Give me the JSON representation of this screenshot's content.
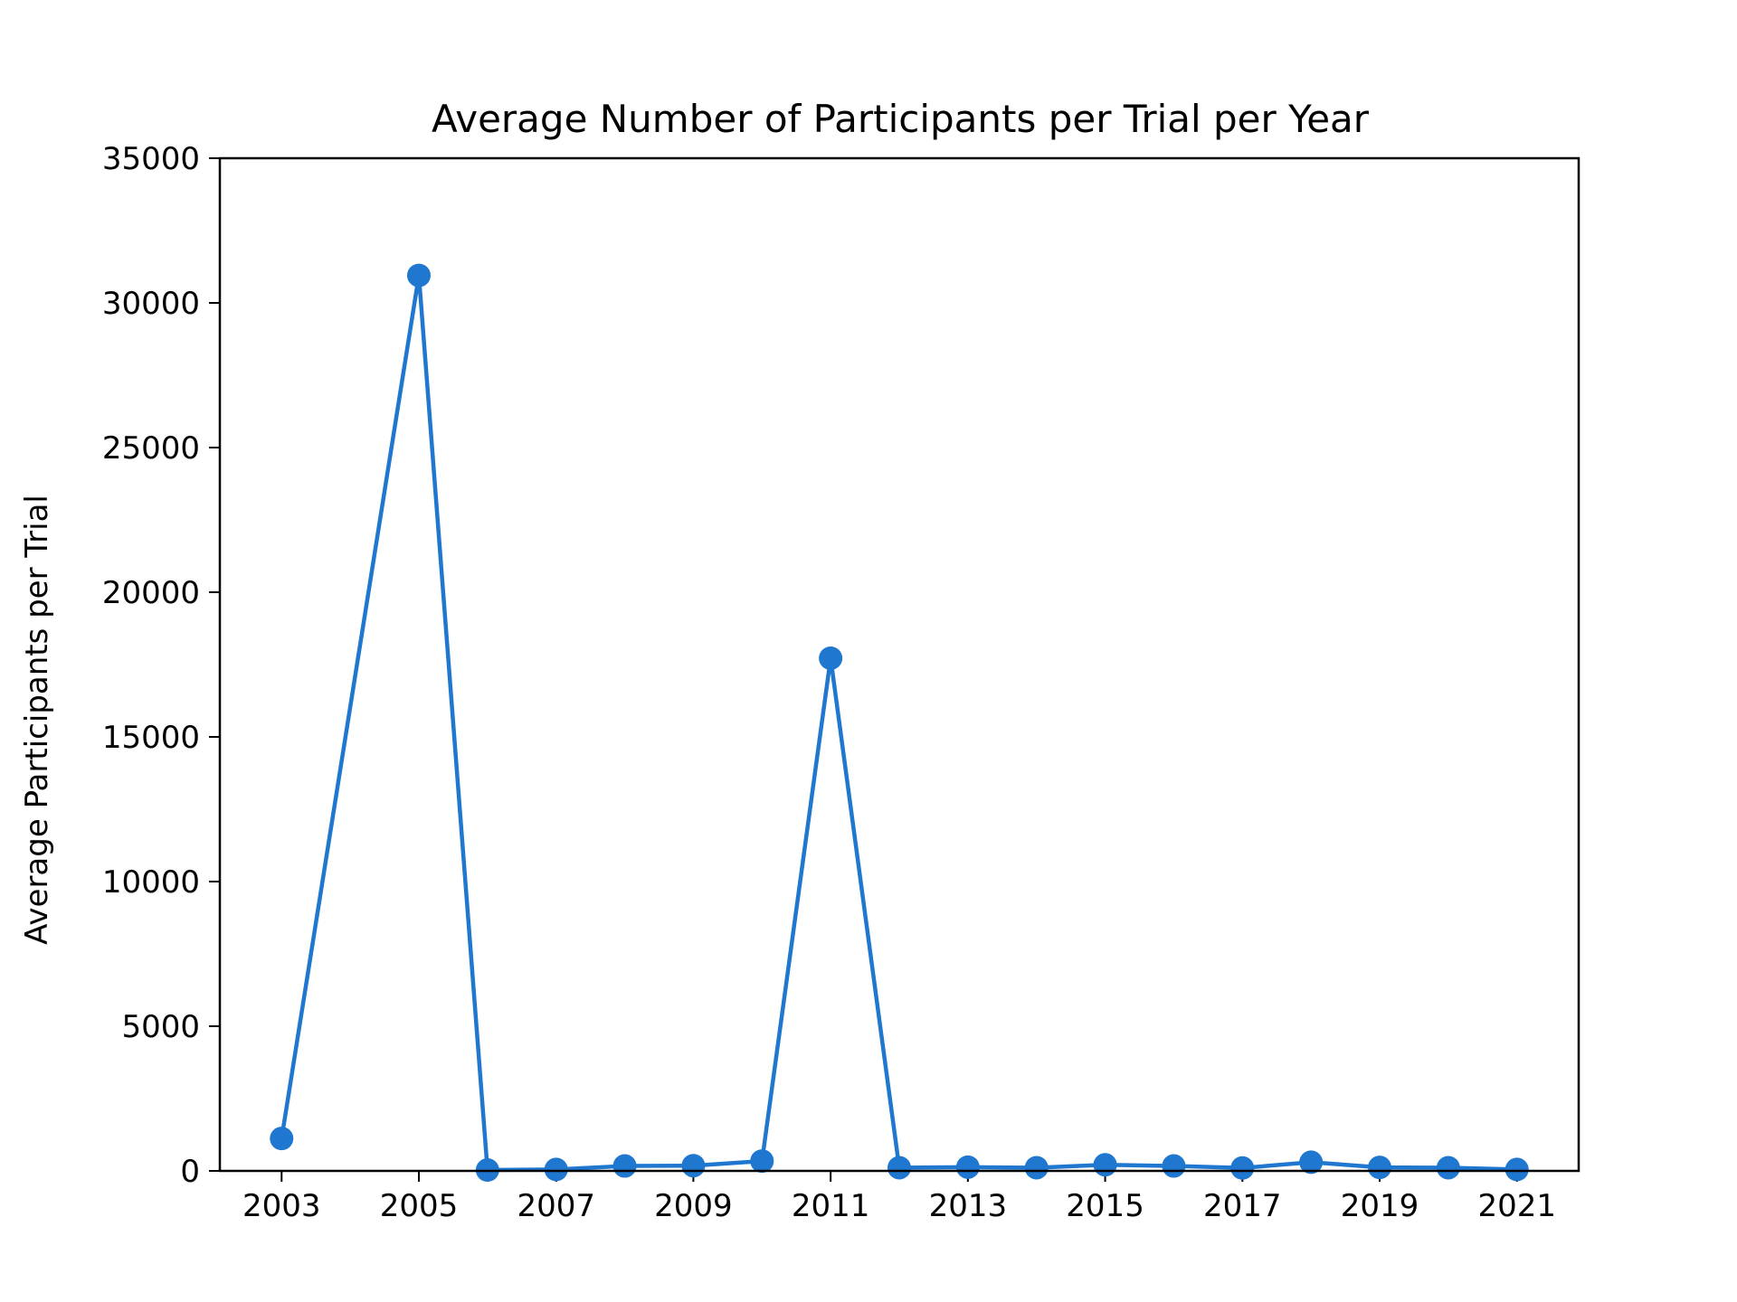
{
  "chart_data": {
    "type": "line",
    "title": "Average Number of Participants per Trial per Year",
    "xlabel": "",
    "ylabel": "Average Participants per Trial",
    "x": [
      2003,
      2005,
      2006,
      2007,
      2008,
      2009,
      2010,
      2011,
      2012,
      2013,
      2014,
      2015,
      2016,
      2017,
      2018,
      2019,
      2020,
      2021
    ],
    "series": [
      {
        "values": [
          1120,
          30950,
          30,
          50,
          170,
          180,
          340,
          17720,
          110,
          130,
          110,
          210,
          170,
          100,
          300,
          120,
          110,
          50
        ],
        "color": "#1f77cf",
        "marker": "circle"
      }
    ],
    "xticks": [
      "2003",
      "2005",
      "2007",
      "2009",
      "2011",
      "2013",
      "2015",
      "2017",
      "2019",
      "2021"
    ],
    "yticks": [
      "0",
      "5000",
      "10000",
      "15000",
      "20000",
      "25000",
      "30000",
      "35000"
    ],
    "xlim": [
      2002.1,
      2021.9
    ],
    "ylim": [
      0,
      35000
    ],
    "grid": false,
    "legend": "none"
  }
}
